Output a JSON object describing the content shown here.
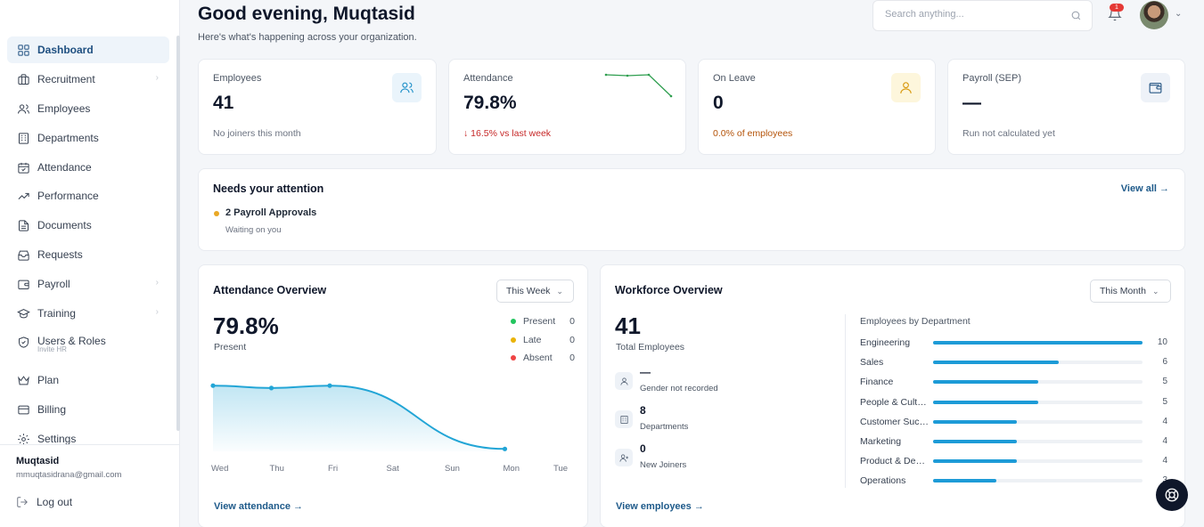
{
  "sidebar": {
    "items": [
      {
        "label": "Dashboard",
        "icon": "dashboard-icon",
        "active": true
      },
      {
        "label": "Recruitment",
        "icon": "briefcase-icon",
        "chevron": true
      },
      {
        "label": "Employees",
        "icon": "users-icon"
      },
      {
        "label": "Departments",
        "icon": "building-icon"
      },
      {
        "label": "Attendance",
        "icon": "calendar-check-icon"
      },
      {
        "label": "Performance",
        "icon": "trending-up-icon"
      },
      {
        "label": "Documents",
        "icon": "document-icon"
      },
      {
        "label": "Requests",
        "icon": "inbox-icon"
      },
      {
        "label": "Payroll",
        "icon": "wallet-icon",
        "chevron": true
      },
      {
        "label": "Training",
        "icon": "graduation-cap-icon",
        "chevron": true
      },
      {
        "label": "Users & Roles",
        "icon": "shield-icon",
        "sub": "Invite HR"
      },
      {
        "label": "Plan",
        "icon": "crown-icon"
      },
      {
        "label": "Billing",
        "icon": "credit-card-icon"
      },
      {
        "label": "Settings",
        "icon": "gear-icon"
      }
    ],
    "user_name": "Muqtasid",
    "user_email": "mmuqtasidrana@gmail.com",
    "logout_label": "Log out"
  },
  "header": {
    "greeting": "Good evening, Muqtasid",
    "subtitle": "Here's what's happening across your organization.",
    "search_placeholder": "Search anything...",
    "notification_count": "1"
  },
  "stats": [
    {
      "label": "Employees",
      "value": "41",
      "sub": "No joiners this month",
      "sub_color": "#6b7280"
    },
    {
      "label": "Attendance",
      "value": "79.8%",
      "sub": "↓ 16.5% vs last week",
      "sub_color": "#c62828"
    },
    {
      "label": "On Leave",
      "value": "0",
      "sub": "0.0% of employees",
      "sub_color": "#b45309"
    },
    {
      "label": "Payroll (SEP)",
      "value": "—",
      "sub": "Run not calculated yet",
      "sub_color": "#6b7280"
    }
  ],
  "attention": {
    "title": "Needs your attention",
    "view_all": "View all →",
    "item_title": "2 Payroll Approvals",
    "item_sub": "Waiting on you",
    "item_dot_color": "#e9a825"
  },
  "attendance_overview": {
    "title": "Attendance Overview",
    "range": "This Week",
    "value": "79.8%",
    "value_label": "Present",
    "legend": [
      {
        "label": "Present",
        "value": "0",
        "color": "#22c55e"
      },
      {
        "label": "Late",
        "value": "0",
        "color": "#eab308"
      },
      {
        "label": "Absent",
        "value": "0",
        "color": "#ef4444"
      }
    ],
    "link": "View attendance →"
  },
  "chart_data": {
    "type": "area",
    "categories": [
      "Wed",
      "Thu",
      "Fri",
      "Sat",
      "Sun",
      "Mon",
      "Tue"
    ],
    "values": [
      0.82,
      0.79,
      0.82,
      null,
      null,
      0.03,
      null
    ],
    "ylim": [
      0,
      1
    ],
    "line_color": "#22a5d6"
  },
  "workforce": {
    "title": "Workforce Overview",
    "range": "This Month",
    "total": "41",
    "total_label": "Total Employees",
    "items": [
      {
        "value": "—",
        "label": "Gender not recorded",
        "icon": "user-icon"
      },
      {
        "value": "8",
        "label": "Departments",
        "icon": "building-icon"
      },
      {
        "value": "0",
        "label": "New Joiners",
        "icon": "user-plus-icon"
      }
    ],
    "dept_title": "Employees by Department",
    "departments": [
      {
        "name": "Engineering",
        "value": 10
      },
      {
        "name": "Sales",
        "value": 6
      },
      {
        "name": "Finance",
        "value": 5
      },
      {
        "name": "People & Culture",
        "value": 5
      },
      {
        "name": "Customer Success",
        "value": 4
      },
      {
        "name": "Marketing",
        "value": 4
      },
      {
        "name": "Product & Design",
        "value": 4
      },
      {
        "name": "Operations",
        "value": 3
      }
    ],
    "dept_max": 10,
    "link": "View employees →"
  }
}
